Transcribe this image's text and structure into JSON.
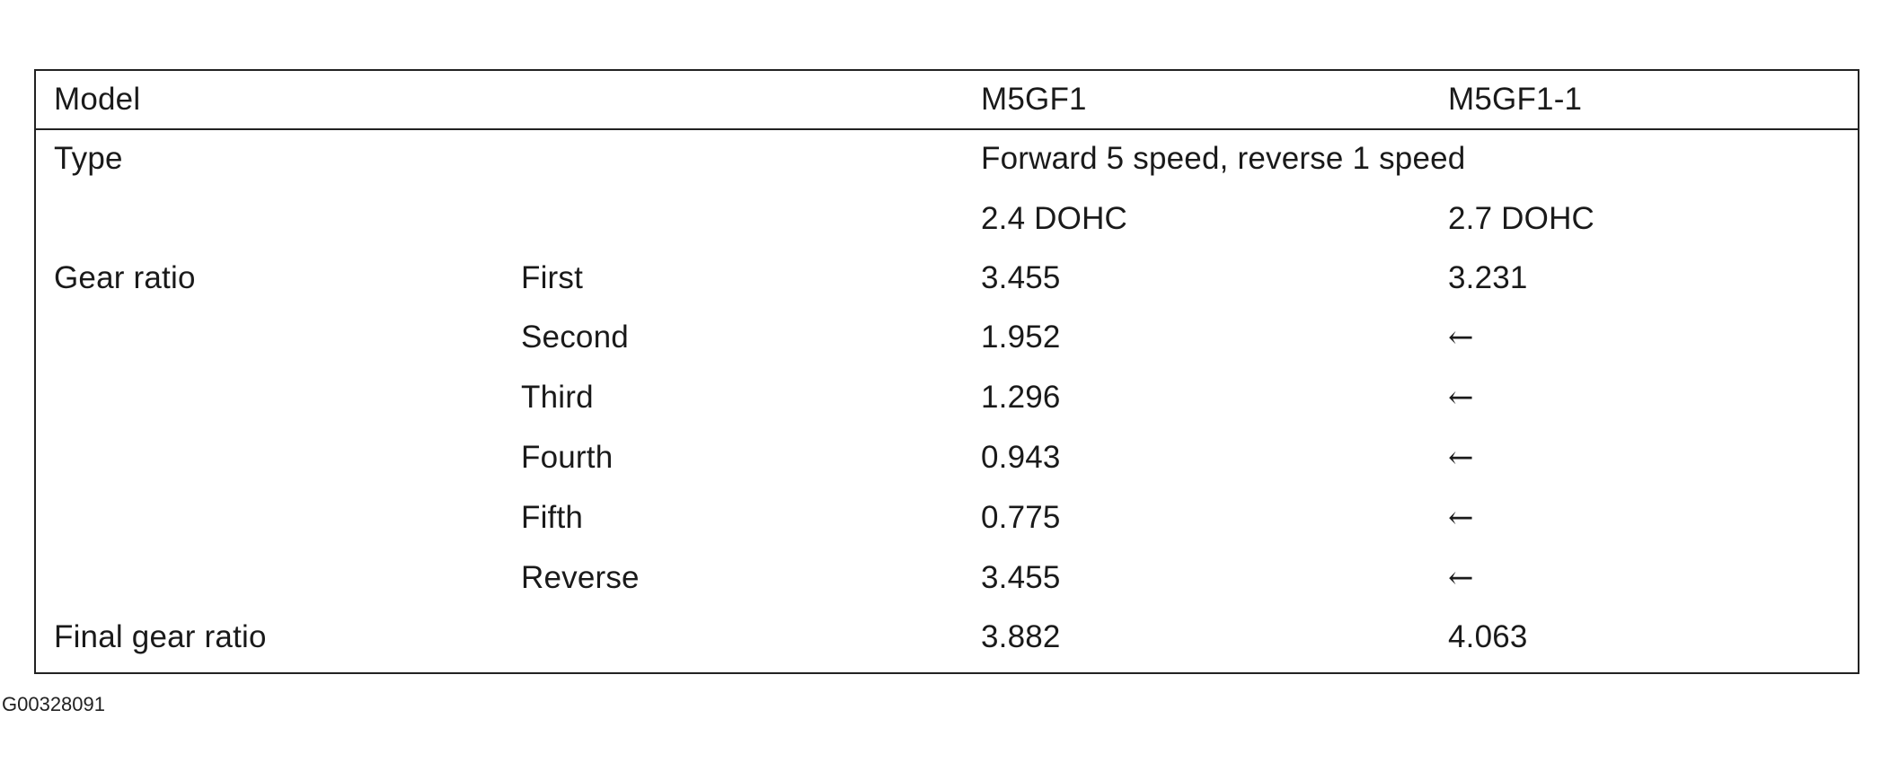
{
  "table": {
    "header": {
      "model_label": "Model",
      "col_1": "M5GF1",
      "col_2": "M5GF1-1"
    },
    "type_row": {
      "label": "Type",
      "value": "Forward 5 speed, reverse 1 speed"
    },
    "engine_row": {
      "col_1": "2.4 DOHC",
      "col_2": "2.7 DOHC"
    },
    "gear_ratio": {
      "label": "Gear ratio",
      "rows": [
        {
          "gear": "First",
          "col_1": "3.455",
          "col_2": "3.231"
        },
        {
          "gear": "Second",
          "col_1": "1.952",
          "col_2": "←"
        },
        {
          "gear": "Third",
          "col_1": "1.296",
          "col_2": "←"
        },
        {
          "gear": "Fourth",
          "col_1": "0.943",
          "col_2": "←"
        },
        {
          "gear": "Fifth",
          "col_1": "0.775",
          "col_2": "←"
        },
        {
          "gear": "Reverse",
          "col_1": "3.455",
          "col_2": "←"
        }
      ]
    },
    "final_gear": {
      "label": "Final gear ratio",
      "col_1": "3.882",
      "col_2": "4.063"
    }
  },
  "figure_id": "G00328091"
}
